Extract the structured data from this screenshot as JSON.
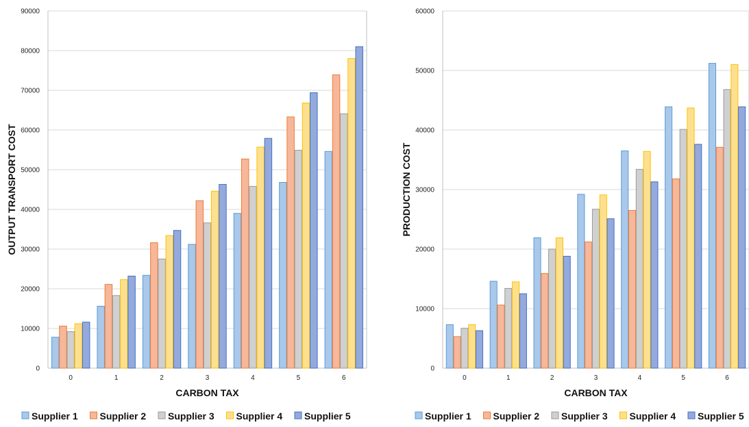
{
  "colors": {
    "Supplier 1": {
      "fill": "#a9c8ea",
      "stroke": "#5b9bd5"
    },
    "Supplier 2": {
      "fill": "#f6b79b",
      "stroke": "#ed7d31"
    },
    "Supplier 3": {
      "fill": "#d0d0d0",
      "stroke": "#9a9a9a"
    },
    "Supplier 4": {
      "fill": "#fde08f",
      "stroke": "#ffc000"
    },
    "Supplier 5": {
      "fill": "#94a9dc",
      "stroke": "#4472c4"
    },
    "grid": "#d9d9d9",
    "frame": "#bfbfbf"
  },
  "chart_data": [
    {
      "type": "bar",
      "title": "",
      "xlabel": "CARBON TAX",
      "ylabel": "OUTPUT TRANSPORT COST",
      "ylim": [
        0,
        90000
      ],
      "yticks": [
        "0",
        "10000",
        "20000",
        "30000",
        "40000",
        "50000",
        "60000",
        "70000",
        "80000",
        "90000"
      ],
      "grid": true,
      "legend": "bottom",
      "categories": [
        "0",
        "1",
        "2",
        "3",
        "4",
        "5",
        "6"
      ],
      "series": [
        {
          "name": "Supplier 1",
          "values": [
            7800,
            15600,
            23400,
            31200,
            39000,
            46800,
            54600
          ]
        },
        {
          "name": "Supplier 2",
          "values": [
            10600,
            21100,
            31600,
            42200,
            52700,
            63300,
            73900
          ]
        },
        {
          "name": "Supplier 3",
          "values": [
            9200,
            18300,
            27500,
            36600,
            45800,
            54900,
            64100
          ]
        },
        {
          "name": "Supplier 4",
          "values": [
            11200,
            22300,
            33400,
            44600,
            55700,
            66800,
            78000
          ]
        },
        {
          "name": "Supplier 5",
          "values": [
            11600,
            23200,
            34700,
            46300,
            57900,
            69400,
            81000
          ]
        }
      ]
    },
    {
      "type": "bar",
      "title": "",
      "xlabel": "CARBON TAX",
      "ylabel": "PRODUCTION  COST",
      "ylim": [
        0,
        60000
      ],
      "yticks": [
        "0",
        "10000",
        "20000",
        "30000",
        "40000",
        "50000",
        "60000"
      ],
      "grid": true,
      "legend": "bottom",
      "categories": [
        "0",
        "1",
        "2",
        "3",
        "4",
        "5",
        "6"
      ],
      "series": [
        {
          "name": "Supplier 1",
          "values": [
            7300,
            14600,
            21900,
            29200,
            36500,
            43900,
            51200
          ]
        },
        {
          "name": "Supplier 2",
          "values": [
            5300,
            10600,
            15900,
            21200,
            26500,
            31800,
            37100
          ]
        },
        {
          "name": "Supplier 3",
          "values": [
            6700,
            13400,
            20000,
            26700,
            33400,
            40100,
            46800
          ]
        },
        {
          "name": "Supplier 4",
          "values": [
            7300,
            14500,
            21900,
            29100,
            36400,
            43700,
            51000
          ]
        },
        {
          "name": "Supplier 5",
          "values": [
            6300,
            12500,
            18800,
            25100,
            31300,
            37600,
            43900
          ]
        }
      ]
    }
  ]
}
